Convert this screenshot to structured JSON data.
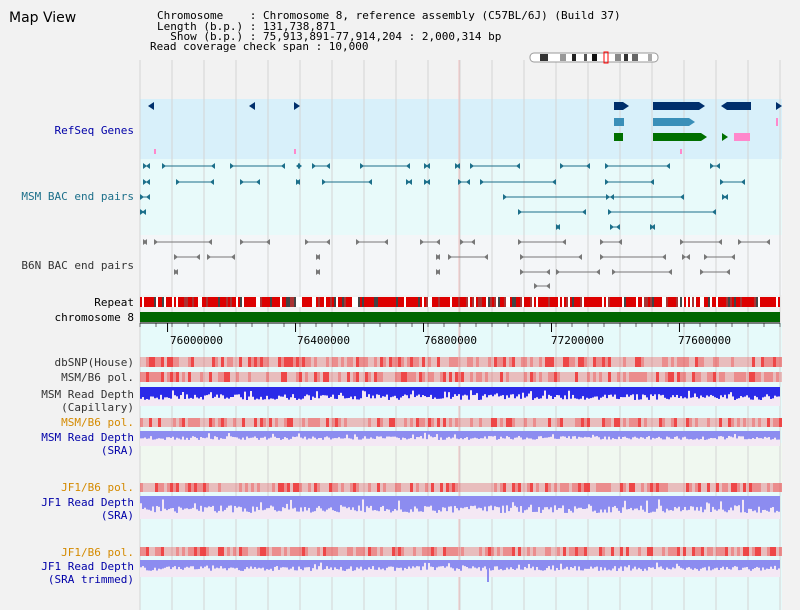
{
  "page_title": "Map View",
  "header": {
    "chromosome": "Chromosome    : Chromosome 8, reference assembly (C57BL/6J) (Build 37)",
    "length": "Length (b.p.) : 131,738,871",
    "show": "  Show (b.p.) : 75,913,891-77,914,204 : 2,000,314 bp",
    "read_coverage": "Read coverage check span : 10,000"
  },
  "tracks": {
    "refseq": "RefSeq Genes",
    "msm_bac": "MSM BAC end pairs",
    "b6n_bac": "B6N BAC end pairs",
    "repeat": "Repeat",
    "chromosome": "chromosome 8",
    "dbsnp": "dbSNP(House)",
    "msm_b6_pol": "MSM/B6 pol.",
    "msm_read_depth_cap": "MSM Read Depth\n(Capillary)",
    "msm_b6_pol2": "MSM/B6 pol.",
    "msm_read_depth_sra": "MSM Read Depth\n(SRA)",
    "jf1_b6_pol": "JF1/B6 pol.",
    "jf1_read_depth_sra": "JF1 Read Depth\n(SRA)",
    "jf1_b6_pol2": "JF1/B6 pol.",
    "jf1_read_depth_trim": "JF1 Read Depth\n(SRA trimmed)"
  },
  "axis": {
    "ticks": [
      "76000000",
      "76400000",
      "76800000",
      "77200000",
      "77600000"
    ],
    "tick_values": [
      76000000,
      76400000,
      76800000,
      77200000,
      77600000
    ],
    "view_start": 75913891,
    "view_end": 77914204
  },
  "colors": {
    "refseq_bg": "#d8f0fa",
    "bac_bg": "#e8fafa",
    "b6n_bg": "#f4f6f8",
    "lower_bg": "#e6fafa",
    "jf1_bg": "#f0f8f0",
    "chrom": "#006600",
    "repeat": "#dd0000",
    "gene_navy": "#002f6c",
    "gene_teal": "#3a8fb8",
    "gene_green": "#007000",
    "gene_pink": "#ff88cc",
    "bac_teal": "#1c6f8a",
    "bac_gray": "#777777",
    "depth_blue": "#2a2ae8",
    "depth_light": "#8c8cf0",
    "pol_red": "#f2a0a0"
  }
}
